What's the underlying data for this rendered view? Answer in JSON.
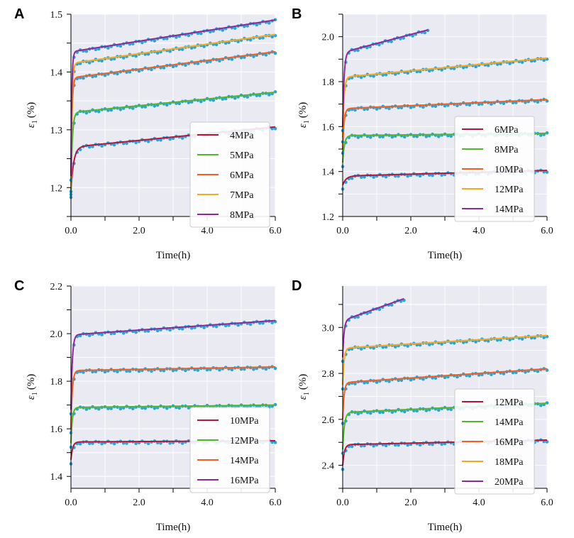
{
  "chart_data": [
    {
      "type": "line",
      "panel": "A",
      "xlabel": "Time(h)",
      "ylabel": "ε1 (%)",
      "ylabel_main": "ε",
      "ylabel_sub": "1",
      "ylabel_unit": "(%)",
      "xlim": [
        0,
        6
      ],
      "ylim": [
        1.15,
        1.5
      ],
      "xticks": [
        0,
        2,
        4,
        6
      ],
      "xtick_labels": [
        "0.0",
        "2.0",
        "4.0",
        "6.0"
      ],
      "yticks": [
        1.2,
        1.3,
        1.4,
        1.5
      ],
      "ytick_labels": [
        "1.2",
        "1.3",
        "1.4",
        "1.5"
      ],
      "legend_position": "lower-right",
      "series": [
        {
          "name": "4MPa",
          "color": "#b5173c",
          "start": 1.195,
          "jump": 0.075,
          "tau": 0.08,
          "slope": 0.0035,
          "tail": 1.305
        },
        {
          "name": "5MPa",
          "color": "#55b52a",
          "start": 1.19,
          "jump": 0.14,
          "tau": 0.04,
          "slope": 0.0055,
          "tail": 1.365
        },
        {
          "name": "6MPa",
          "color": "#f06020",
          "start": 1.2,
          "jump": 0.19,
          "tau": 0.03,
          "slope": 0.0075,
          "tail": 1.435
        },
        {
          "name": "7MPa",
          "color": "#f5aa1e",
          "start": 1.2,
          "jump": 0.215,
          "tau": 0.03,
          "slope": 0.0085,
          "tail": 1.465
        },
        {
          "name": "8MPa",
          "color": "#8e2a95",
          "start": 1.22,
          "jump": 0.215,
          "tau": 0.025,
          "slope": 0.009,
          "tail": 1.49
        }
      ]
    },
    {
      "type": "line",
      "panel": "B",
      "xlabel": "Time(h)",
      "ylabel": "ε1 (%)",
      "ylabel_main": "ε",
      "ylabel_sub": "1",
      "ylabel_unit": "(%)",
      "xlim": [
        0,
        6
      ],
      "ylim": [
        1.2,
        2.1
      ],
      "xticks": [
        0,
        2,
        4,
        6
      ],
      "xtick_labels": [
        "0.0",
        "2.0",
        "4.0",
        "6.0"
      ],
      "yticks": [
        1.2,
        1.4,
        1.6,
        1.8,
        2.0
      ],
      "ytick_labels": [
        "1.2",
        "1.4",
        "1.6",
        "1.8",
        "2.0"
      ],
      "legend_position": "lower-right",
      "series": [
        {
          "name": "6MPa",
          "color": "#b5173c",
          "start": 1.34,
          "jump": 0.04,
          "tau": 0.1,
          "slope": 0.0035,
          "tail": 1.405
        },
        {
          "name": "8MPa",
          "color": "#55b52a",
          "start": 1.44,
          "jump": 0.12,
          "tau": 0.05,
          "slope": 0.002,
          "tail": 1.57
        },
        {
          "name": "10MPa",
          "color": "#f06020",
          "start": 1.5,
          "jump": 0.18,
          "tau": 0.04,
          "slope": 0.006,
          "tail": 1.72
        },
        {
          "name": "12MPa",
          "color": "#f5aa1e",
          "start": 1.55,
          "jump": 0.27,
          "tau": 0.04,
          "slope": 0.011,
          "tail": 1.905
        },
        {
          "name": "14MPa",
          "color": "#8e2a95",
          "start": 1.6,
          "jump": 0.33,
          "tau": 0.04,
          "slope": 0.03,
          "tail": 2.03,
          "t_end": 2.5
        }
      ]
    },
    {
      "type": "line",
      "panel": "C",
      "xlabel": "Time(h)",
      "ylabel": "ε1 (%)",
      "ylabel_main": "ε",
      "ylabel_sub": "1",
      "ylabel_unit": "(%)",
      "xlim": [
        0,
        6
      ],
      "ylim": [
        1.35,
        2.2
      ],
      "xticks": [
        0,
        2,
        4,
        6
      ],
      "xtick_labels": [
        "0.0",
        "2.0",
        "4.0",
        "6.0"
      ],
      "yticks": [
        1.4,
        1.6,
        1.8,
        2.0,
        2.2
      ],
      "ytick_labels": [
        "1.4",
        "1.6",
        "1.8",
        "2.0",
        "2.2"
      ],
      "legend_position": "lower-right",
      "series": [
        {
          "name": "10MPa",
          "color": "#b5173c",
          "start": 1.47,
          "jump": 0.075,
          "tau": 0.05,
          "slope": 0.0005,
          "tail": 1.55
        },
        {
          "name": "12MPa",
          "color": "#55b52a",
          "start": 1.54,
          "jump": 0.15,
          "tau": 0.04,
          "slope": 0.0008,
          "tail": 1.7
        },
        {
          "name": "14MPa",
          "color": "#f06020",
          "start": 1.6,
          "jump": 0.245,
          "tau": 0.04,
          "slope": 0.0012,
          "tail": 1.86
        },
        {
          "name": "16MPa",
          "color": "#8e2a95",
          "start": 1.68,
          "jump": 0.315,
          "tau": 0.04,
          "slope": 0.0095,
          "tail": 2.055
        }
      ]
    },
    {
      "type": "line",
      "panel": "D",
      "xlabel": "Time(h)",
      "ylabel": "ε1 (%)",
      "ylabel_main": "ε",
      "ylabel_sub": "1",
      "ylabel_unit": "(%)",
      "xlim": [
        0,
        6
      ],
      "ylim": [
        2.3,
        3.18
      ],
      "xticks": [
        0,
        2,
        4,
        6
      ],
      "xtick_labels": [
        "0.0",
        "2.0",
        "4.0",
        "6.0"
      ],
      "yticks": [
        2.4,
        2.6,
        2.8,
        3.0
      ],
      "ytick_labels": [
        "2.4",
        "2.6",
        "2.8",
        "3.0"
      ],
      "legend_position": "lower-right",
      "series": [
        {
          "name": "12MPa",
          "color": "#b5173c",
          "start": 2.4,
          "jump": 0.09,
          "tau": 0.05,
          "slope": 0.0035,
          "tail": 2.51
        },
        {
          "name": "14MPa",
          "color": "#55b52a",
          "start": 2.47,
          "jump": 0.16,
          "tau": 0.05,
          "slope": 0.0065,
          "tail": 2.67
        },
        {
          "name": "16MPa",
          "color": "#f06020",
          "start": 2.6,
          "jump": 0.16,
          "tau": 0.04,
          "slope": 0.009,
          "tail": 2.82
        },
        {
          "name": "18MPa",
          "color": "#f5aa1e",
          "start": 2.75,
          "jump": 0.16,
          "tau": 0.04,
          "slope": 0.009,
          "tail": 2.965
        },
        {
          "name": "20MPa",
          "color": "#8e2a95",
          "start": 2.87,
          "jump": 0.16,
          "tau": 0.04,
          "slope": 0.05,
          "tail": 3.125,
          "t_end": 1.8
        }
      ]
    }
  ],
  "colors": {
    "plot_background": "#eaeaf2",
    "grid": "#ffffff",
    "marker": "#2aa3d8"
  }
}
